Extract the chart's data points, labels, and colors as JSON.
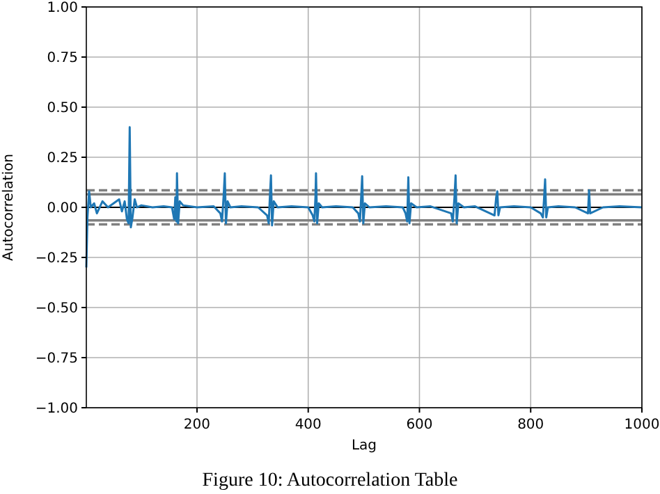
{
  "chart_data": {
    "type": "line",
    "xlabel": "Lag",
    "ylabel": "Autocorrelation",
    "annotations": [
      "Figure 10: Autocorrelation Table"
    ],
    "xlim": [
      1,
      1000
    ],
    "ylim": [
      -1,
      1
    ],
    "xticks": [
      200,
      400,
      600,
      800,
      1000
    ],
    "yticks": [
      {
        "value": -1,
        "label": "−1.00"
      },
      {
        "value": -0.75,
        "label": "−0.75"
      },
      {
        "value": -0.5,
        "label": "−0.50"
      },
      {
        "value": -0.25,
        "label": "−0.25"
      },
      {
        "value": 0,
        "label": "0.00"
      },
      {
        "value": 0.25,
        "label": "0.25"
      },
      {
        "value": 0.5,
        "label": "0.50"
      },
      {
        "value": 0.75,
        "label": "0.75"
      },
      {
        "value": 1,
        "label": "1.00"
      }
    ],
    "grid": true,
    "ref_lines": [
      {
        "axis": "y",
        "value": 0.085,
        "color": "#808080",
        "line_style": "dashed"
      },
      {
        "axis": "y",
        "value": -0.085,
        "color": "#808080",
        "line_style": "dashed"
      },
      {
        "axis": "y",
        "value": 0.065,
        "color": "#808080",
        "line_style": "solid"
      },
      {
        "axis": "y",
        "value": -0.065,
        "color": "#808080",
        "line_style": "solid"
      },
      {
        "axis": "y",
        "value": 0,
        "color": "#000000",
        "line_style": "solid"
      }
    ],
    "series": [
      {
        "color": "#1f77b4",
        "x": [
          1,
          3,
          6,
          9,
          15,
          20,
          30,
          40,
          50,
          60,
          65,
          70,
          74,
          77,
          79,
          81,
          84,
          88,
          92,
          100,
          120,
          140,
          155,
          159,
          161,
          163,
          164,
          166,
          169,
          175,
          200,
          230,
          242,
          245,
          248,
          250,
          252,
          255,
          260,
          280,
          310,
          326,
          329,
          331,
          333,
          335,
          338,
          345,
          370,
          400,
          408,
          411,
          413,
          414,
          416,
          419,
          425,
          450,
          480,
          490,
          493,
          495,
          497,
          499,
          502,
          510,
          540,
          570,
          575,
          578,
          580,
          582,
          585,
          595,
          620,
          657,
          660,
          663,
          665,
          667,
          670,
          680,
          700,
          735,
          738,
          740,
          742,
          745,
          770,
          800,
          818,
          822,
          824,
          826,
          828,
          831,
          850,
          880,
          903,
          905,
          907,
          930,
          960,
          1000
        ],
        "values": [
          -0.3,
          -0.05,
          0.08,
          0.0,
          0.02,
          -0.03,
          0.03,
          0.0,
          0.02,
          0.04,
          -0.02,
          0.03,
          -0.06,
          -0.08,
          0.4,
          -0.1,
          -0.05,
          0.04,
          0.0,
          0.01,
          0.0,
          0.005,
          0.0,
          -0.06,
          0.05,
          -0.07,
          0.17,
          -0.08,
          0.03,
          0.01,
          0.0,
          0.005,
          -0.03,
          -0.07,
          0.06,
          0.17,
          -0.08,
          0.03,
          0.0,
          0.005,
          0.0,
          -0.04,
          -0.08,
          0.05,
          0.16,
          -0.09,
          0.03,
          0.0,
          0.005,
          0.0,
          -0.04,
          -0.07,
          0.05,
          0.17,
          -0.08,
          0.02,
          0.0,
          0.005,
          0.0,
          -0.03,
          -0.07,
          0.04,
          0.155,
          -0.08,
          0.02,
          0.0,
          0.005,
          0.0,
          -0.03,
          -0.07,
          0.15,
          -0.08,
          0.02,
          0.0,
          0.005,
          -0.03,
          -0.07,
          0.05,
          0.16,
          -0.08,
          0.02,
          0.0,
          0.005,
          -0.04,
          0.05,
          0.08,
          -0.04,
          0.0,
          0.005,
          0.0,
          -0.03,
          -0.05,
          0.04,
          0.14,
          -0.05,
          0.0,
          0.005,
          0.0,
          -0.03,
          0.085,
          -0.03,
          0.0,
          0.005,
          0.0
        ]
      }
    ]
  }
}
